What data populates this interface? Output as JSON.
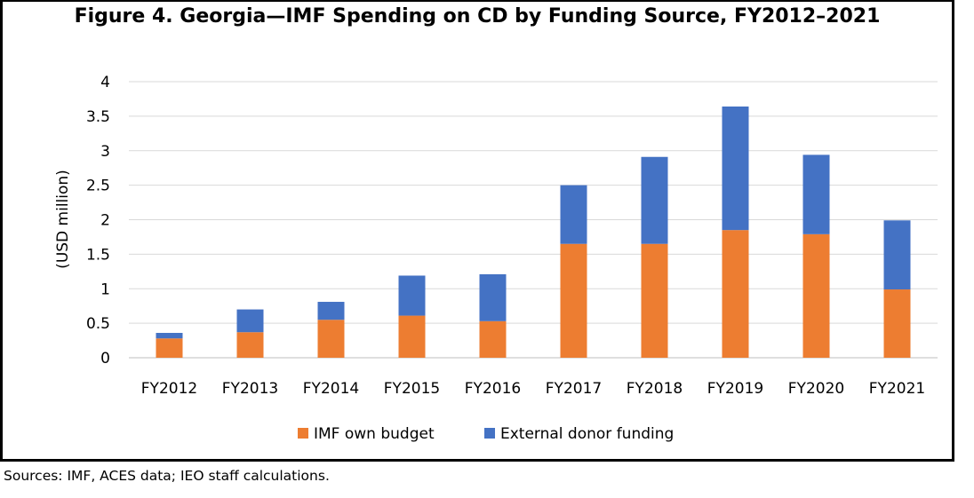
{
  "chart_data": {
    "type": "bar",
    "stacked": true,
    "title": "Figure 4. Georgia—IMF Spending on CD by Funding Source,  FY2012–2021",
    "ylabel": "(USD million)",
    "xlabel": "",
    "ylim": [
      0,
      4
    ],
    "yticks": [
      "0",
      "0.5",
      "1",
      "1.5",
      "2",
      "2.5",
      "3",
      "3.5",
      "4"
    ],
    "grid": true,
    "legend_position": "bottom",
    "categories": [
      "FY2012",
      "FY2013",
      "FY2014",
      "FY2015",
      "FY2016",
      "FY2017",
      "FY2018",
      "FY2019",
      "FY2020",
      "FY2021"
    ],
    "series": [
      {
        "name": "IMF own budget",
        "color": "#ED7D31",
        "values": [
          0.28,
          0.37,
          0.55,
          0.61,
          0.53,
          1.65,
          1.65,
          1.85,
          1.79,
          0.99
        ]
      },
      {
        "name": "External donor funding",
        "color": "#4472C4",
        "values": [
          0.08,
          0.33,
          0.26,
          0.58,
          0.68,
          0.85,
          1.26,
          1.79,
          1.15,
          1.0
        ]
      }
    ]
  },
  "footer": {
    "source": "Sources: IMF, ACES data; IEO staff calculations."
  }
}
